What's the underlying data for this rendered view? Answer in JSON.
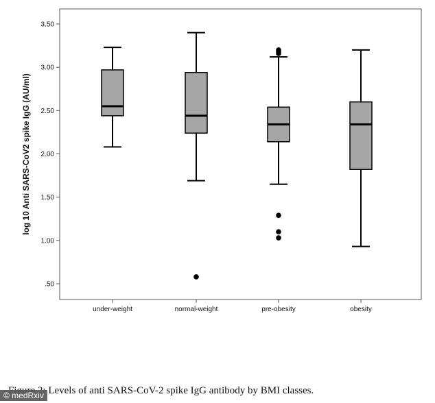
{
  "chart_data": {
    "type": "box",
    "ylabel": "log 10 Anti SARS-CoV2 spike IgG (AU/ml)",
    "ylim": [
      0.3,
      3.65
    ],
    "yticks": [
      {
        "value": 0.5,
        "label": ".50"
      },
      {
        "value": 1.0,
        "label": "1.00"
      },
      {
        "value": 1.5,
        "label": "1.50"
      },
      {
        "value": 2.0,
        "label": "2.00"
      },
      {
        "value": 2.5,
        "label": "2.50"
      },
      {
        "value": 3.0,
        "label": "3.00"
      },
      {
        "value": 3.5,
        "label": "3.50"
      }
    ],
    "categories": [
      "under-weight",
      "normal-weight",
      "pre-obesity",
      "obesity"
    ],
    "boxes": [
      {
        "category": "under-weight",
        "whisker_low": 2.08,
        "q1": 2.44,
        "median": 2.55,
        "q3": 2.97,
        "whisker_high": 3.23,
        "outliers": []
      },
      {
        "category": "normal-weight",
        "whisker_low": 1.69,
        "q1": 2.24,
        "median": 2.44,
        "q3": 2.94,
        "whisker_high": 3.4,
        "outliers": [
          0.58
        ]
      },
      {
        "category": "pre-obesity",
        "whisker_low": 1.65,
        "q1": 2.14,
        "median": 2.34,
        "q3": 2.54,
        "whisker_high": 3.12,
        "outliers": [
          1.03,
          1.1,
          1.29,
          3.16,
          3.18,
          3.2
        ]
      },
      {
        "category": "obesity",
        "whisker_low": 0.93,
        "q1": 1.82,
        "median": 2.34,
        "q3": 2.6,
        "whisker_high": 3.2,
        "outliers": []
      }
    ],
    "colors": {
      "box_fill": "#a6a6a6",
      "stroke": "#000000",
      "frame": "#555555"
    }
  },
  "caption": "Figure 2: Levels of anti SARS-CoV-2 spike IgG antibody by BMI classes.",
  "watermark": "© medRxiv"
}
